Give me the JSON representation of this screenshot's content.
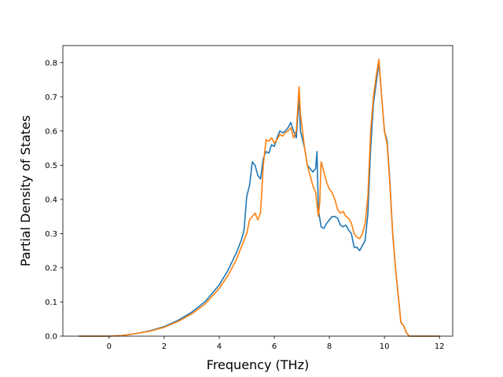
{
  "chart_data": {
    "type": "line",
    "title": "",
    "xlabel": "Frequency (THz)",
    "ylabel": "Partial Density of States",
    "xlim": [
      -1.68,
      12.48
    ],
    "ylim": [
      0.0,
      0.85
    ],
    "x_ticks": [
      0,
      2,
      4,
      6,
      8,
      10,
      12
    ],
    "y_ticks": [
      0.0,
      0.1,
      0.2,
      0.3,
      0.4,
      0.5,
      0.6,
      0.7,
      0.8
    ],
    "x_tick_labels": [
      "0",
      "2",
      "4",
      "6",
      "8",
      "10",
      "12"
    ],
    "y_tick_labels": [
      "0.0",
      "0.1",
      "0.2",
      "0.3",
      "0.4",
      "0.5",
      "0.6",
      "0.7",
      "0.8"
    ],
    "grid": false,
    "legend": "none",
    "series": [
      {
        "color": "#1f77b4",
        "points": [
          [
            -1.1,
            0.0
          ],
          [
            0.0,
            0.0
          ],
          [
            0.5,
            0.002
          ],
          [
            1.0,
            0.008
          ],
          [
            1.5,
            0.016
          ],
          [
            2.0,
            0.028
          ],
          [
            2.5,
            0.046
          ],
          [
            3.0,
            0.07
          ],
          [
            3.5,
            0.102
          ],
          [
            4.0,
            0.15
          ],
          [
            4.3,
            0.19
          ],
          [
            4.6,
            0.24
          ],
          [
            4.8,
            0.28
          ],
          [
            4.9,
            0.31
          ],
          [
            5.0,
            0.41
          ],
          [
            5.1,
            0.44
          ],
          [
            5.2,
            0.51
          ],
          [
            5.3,
            0.5
          ],
          [
            5.4,
            0.47
          ],
          [
            5.5,
            0.46
          ],
          [
            5.6,
            0.52
          ],
          [
            5.7,
            0.54
          ],
          [
            5.8,
            0.535
          ],
          [
            5.9,
            0.56
          ],
          [
            6.0,
            0.555
          ],
          [
            6.1,
            0.58
          ],
          [
            6.2,
            0.6
          ],
          [
            6.3,
            0.595
          ],
          [
            6.4,
            0.6
          ],
          [
            6.5,
            0.61
          ],
          [
            6.6,
            0.625
          ],
          [
            6.7,
            0.6
          ],
          [
            6.8,
            0.58
          ],
          [
            6.9,
            0.7
          ],
          [
            6.95,
            0.6
          ],
          [
            7.1,
            0.55
          ],
          [
            7.2,
            0.5
          ],
          [
            7.4,
            0.48
          ],
          [
            7.5,
            0.49
          ],
          [
            7.55,
            0.54
          ],
          [
            7.6,
            0.37
          ],
          [
            7.7,
            0.32
          ],
          [
            7.8,
            0.315
          ],
          [
            7.9,
            0.33
          ],
          [
            8.0,
            0.34
          ],
          [
            8.1,
            0.35
          ],
          [
            8.2,
            0.35
          ],
          [
            8.3,
            0.345
          ],
          [
            8.4,
            0.325
          ],
          [
            8.5,
            0.32
          ],
          [
            8.6,
            0.325
          ],
          [
            8.7,
            0.31
          ],
          [
            8.8,
            0.3
          ],
          [
            8.9,
            0.26
          ],
          [
            9.0,
            0.26
          ],
          [
            9.1,
            0.25
          ],
          [
            9.3,
            0.28
          ],
          [
            9.4,
            0.36
          ],
          [
            9.5,
            0.55
          ],
          [
            9.6,
            0.68
          ],
          [
            9.7,
            0.74
          ],
          [
            9.8,
            0.8
          ],
          [
            9.9,
            0.7
          ],
          [
            10.0,
            0.6
          ],
          [
            10.1,
            0.57
          ],
          [
            10.2,
            0.45
          ],
          [
            10.3,
            0.3
          ],
          [
            10.4,
            0.2
          ],
          [
            10.5,
            0.12
          ],
          [
            10.6,
            0.04
          ],
          [
            10.7,
            0.03
          ],
          [
            10.8,
            0.01
          ],
          [
            10.9,
            0.0
          ],
          [
            12.0,
            0.0
          ]
        ]
      },
      {
        "color": "#ff7f0e",
        "points": [
          [
            -1.1,
            0.0
          ],
          [
            0.0,
            0.0
          ],
          [
            0.5,
            0.002
          ],
          [
            1.0,
            0.008
          ],
          [
            1.5,
            0.015
          ],
          [
            2.0,
            0.026
          ],
          [
            2.5,
            0.043
          ],
          [
            3.0,
            0.065
          ],
          [
            3.5,
            0.095
          ],
          [
            4.0,
            0.14
          ],
          [
            4.3,
            0.175
          ],
          [
            4.6,
            0.22
          ],
          [
            4.8,
            0.26
          ],
          [
            5.0,
            0.3
          ],
          [
            5.1,
            0.34
          ],
          [
            5.2,
            0.35
          ],
          [
            5.3,
            0.36
          ],
          [
            5.4,
            0.34
          ],
          [
            5.5,
            0.36
          ],
          [
            5.6,
            0.5
          ],
          [
            5.7,
            0.575
          ],
          [
            5.8,
            0.57
          ],
          [
            5.9,
            0.58
          ],
          [
            6.0,
            0.565
          ],
          [
            6.1,
            0.575
          ],
          [
            6.2,
            0.59
          ],
          [
            6.3,
            0.585
          ],
          [
            6.4,
            0.595
          ],
          [
            6.5,
            0.6
          ],
          [
            6.6,
            0.61
          ],
          [
            6.7,
            0.58
          ],
          [
            6.8,
            0.6
          ],
          [
            6.9,
            0.73
          ],
          [
            6.95,
            0.65
          ],
          [
            7.1,
            0.55
          ],
          [
            7.2,
            0.5
          ],
          [
            7.4,
            0.44
          ],
          [
            7.5,
            0.42
          ],
          [
            7.6,
            0.35
          ],
          [
            7.65,
            0.39
          ],
          [
            7.7,
            0.51
          ],
          [
            7.8,
            0.48
          ],
          [
            7.9,
            0.45
          ],
          [
            8.0,
            0.43
          ],
          [
            8.1,
            0.42
          ],
          [
            8.2,
            0.4
          ],
          [
            8.3,
            0.37
          ],
          [
            8.4,
            0.36
          ],
          [
            8.5,
            0.365
          ],
          [
            8.6,
            0.35
          ],
          [
            8.7,
            0.345
          ],
          [
            8.8,
            0.33
          ],
          [
            8.9,
            0.3
          ],
          [
            9.0,
            0.29
          ],
          [
            9.1,
            0.285
          ],
          [
            9.2,
            0.3
          ],
          [
            9.3,
            0.33
          ],
          [
            9.4,
            0.41
          ],
          [
            9.5,
            0.6
          ],
          [
            9.6,
            0.7
          ],
          [
            9.7,
            0.76
          ],
          [
            9.8,
            0.81
          ],
          [
            9.9,
            0.7
          ],
          [
            10.0,
            0.6
          ],
          [
            10.1,
            0.56
          ],
          [
            10.2,
            0.44
          ],
          [
            10.3,
            0.3
          ],
          [
            10.4,
            0.2
          ],
          [
            10.5,
            0.12
          ],
          [
            10.6,
            0.04
          ],
          [
            10.7,
            0.03
          ],
          [
            10.8,
            0.01
          ],
          [
            10.9,
            0.0
          ],
          [
            12.0,
            0.0
          ]
        ]
      }
    ]
  }
}
